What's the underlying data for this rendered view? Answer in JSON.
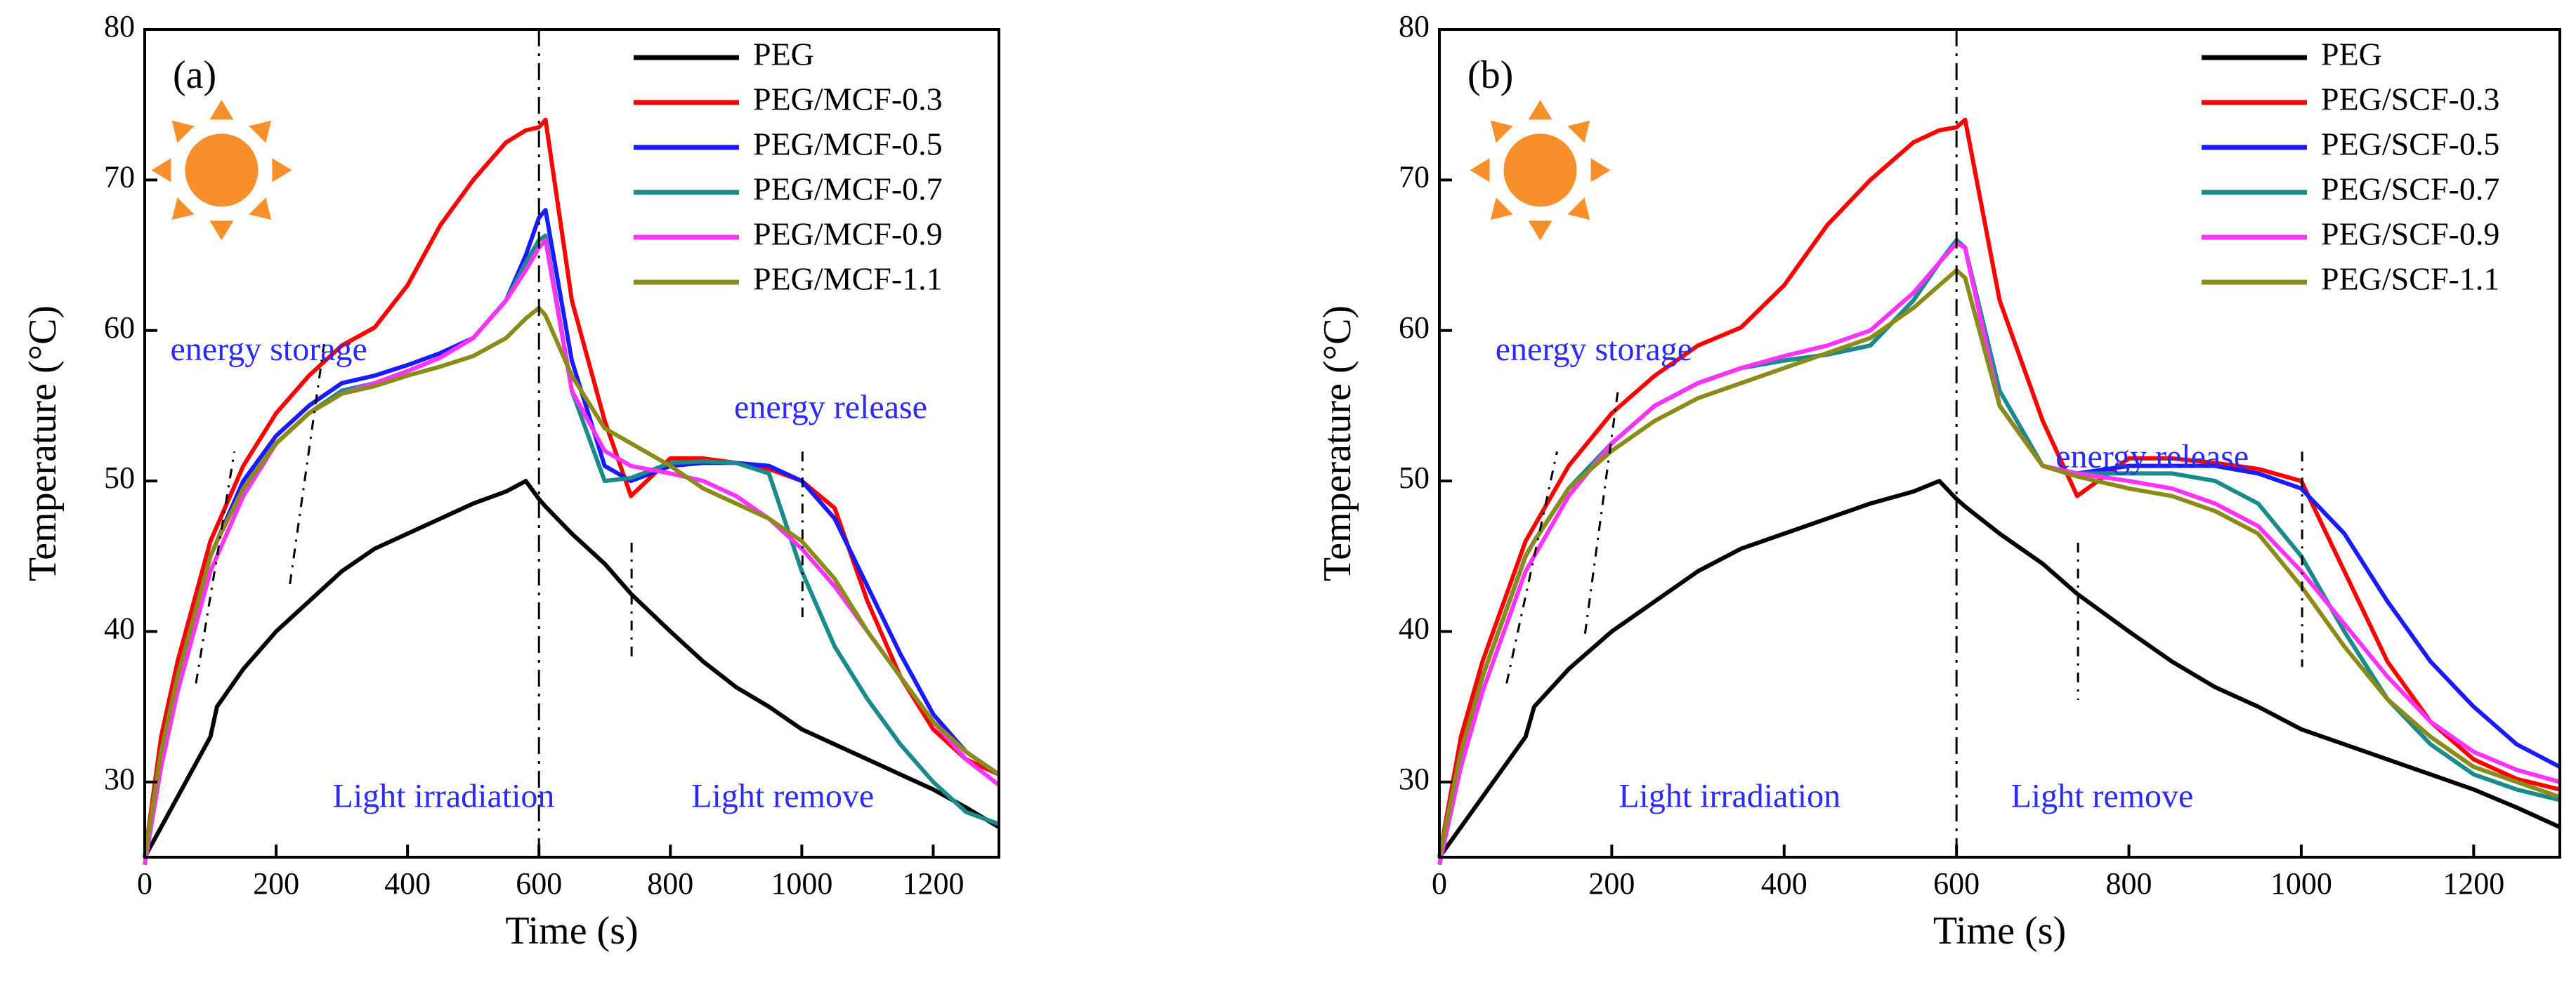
{
  "chart_data": [
    {
      "type": "line",
      "label": "(a)",
      "xlabel": "Time (s)",
      "ylabel": "Temperature (°C)",
      "annotations": [
        "energy storage",
        "energy release",
        "Light irradiation",
        "Light remove"
      ],
      "xlim": [
        0,
        1300
      ],
      "ylim": [
        25,
        80
      ],
      "xticks": [
        0,
        200,
        400,
        600,
        800,
        1000,
        1200
      ],
      "yticks": [
        30,
        40,
        50,
        60,
        70,
        80
      ],
      "legend": "upper right",
      "x": [
        0,
        25,
        50,
        100,
        110,
        150,
        200,
        250,
        300,
        350,
        400,
        450,
        500,
        550,
        580,
        600,
        610,
        650,
        700,
        740,
        800,
        850,
        900,
        950,
        1000,
        1050,
        1100,
        1150,
        1200,
        1250,
        1300
      ],
      "series": [
        {
          "name": "PEG",
          "color": "#000000",
          "values": [
            25,
            27,
            29,
            33,
            35,
            37.5,
            40,
            42,
            44,
            45.5,
            46.5,
            47.5,
            48.5,
            49.3,
            50,
            48.8,
            48.3,
            46.5,
            44.5,
            42.5,
            40,
            38,
            36.3,
            35,
            33.5,
            32.5,
            31.5,
            30.5,
            29.5,
            28.3,
            27
          ]
        },
        {
          "name": "PEG/MCF-0.3",
          "color": "#ff0000",
          "values": [
            25,
            33,
            38,
            46,
            47,
            51,
            54.5,
            57,
            59,
            60.2,
            63,
            67,
            70,
            72.5,
            73.3,
            73.5,
            74,
            62,
            54,
            49,
            51.5,
            51.5,
            51.2,
            50.8,
            50,
            48.2,
            42,
            37,
            33.5,
            31.5,
            30.5
          ]
        },
        {
          "name": "PEG/MCF-0.5",
          "color": "#1a1aff",
          "values": [
            25,
            32,
            37,
            45,
            46,
            50,
            53,
            55,
            56.5,
            57,
            57.7,
            58.5,
            59.5,
            62,
            65,
            67.5,
            68,
            58,
            51,
            50,
            51,
            51.2,
            51.2,
            51,
            50,
            47.5,
            43,
            38.5,
            34.5,
            32,
            30.5
          ]
        },
        {
          "name": "PEG/MCF-0.7",
          "color": "#1a8a8a",
          "values": [
            25,
            32,
            37,
            45,
            46,
            49.5,
            52.5,
            54.5,
            56,
            56.5,
            57.3,
            58.2,
            59.5,
            62,
            64.5,
            66,
            66.3,
            56,
            50,
            50.2,
            51.2,
            51.3,
            51.2,
            50.5,
            44,
            39,
            35.5,
            32.5,
            30,
            28,
            27.2
          ]
        },
        {
          "name": "PEG/MCF-0.9",
          "color": "#ff33ff",
          "values": [
            24.5,
            31,
            36,
            44,
            45,
            49,
            52.5,
            54.5,
            55.8,
            56.5,
            57.3,
            58.2,
            59.5,
            62,
            64,
            65.5,
            66,
            56,
            52,
            51,
            50.5,
            50,
            49,
            47.5,
            45.5,
            43,
            40,
            37,
            34,
            31.5,
            29.8
          ]
        },
        {
          "name": "PEG/MCF-1.1",
          "color": "#8b8b1a",
          "values": [
            25,
            32,
            37,
            45,
            46,
            49.5,
            52.5,
            54.5,
            55.8,
            56.3,
            57,
            57.6,
            58.3,
            59.5,
            60.8,
            61.5,
            61,
            57,
            53.5,
            52.5,
            51,
            49.5,
            48.5,
            47.5,
            46,
            43.5,
            40,
            37,
            34,
            32,
            30.5
          ]
        }
      ]
    },
    {
      "type": "line",
      "label": "(b)",
      "xlabel": "Time (s)",
      "ylabel": "Temperature (°C)",
      "annotations": [
        "energy storage",
        "energy release",
        "Light irradiation",
        "Light remove"
      ],
      "xlim": [
        0,
        1300
      ],
      "ylim": [
        25,
        80
      ],
      "xticks": [
        0,
        200,
        400,
        600,
        800,
        1000,
        1200
      ],
      "yticks": [
        30,
        40,
        50,
        60,
        70,
        80
      ],
      "legend": "upper right",
      "x": [
        0,
        25,
        50,
        100,
        110,
        150,
        200,
        250,
        300,
        350,
        400,
        450,
        500,
        550,
        580,
        600,
        610,
        650,
        700,
        740,
        800,
        850,
        900,
        950,
        1000,
        1050,
        1100,
        1150,
        1200,
        1250,
        1300
      ],
      "series": [
        {
          "name": "PEG",
          "color": "#000000",
          "values": [
            25,
            27,
            29,
            33,
            35,
            37.5,
            40,
            42,
            44,
            45.5,
            46.5,
            47.5,
            48.5,
            49.3,
            50,
            48.8,
            48.3,
            46.5,
            44.5,
            42.5,
            40,
            38,
            36.3,
            35,
            33.5,
            32.5,
            31.5,
            30.5,
            29.5,
            28.3,
            27
          ]
        },
        {
          "name": "PEG/SCF-0.3",
          "color": "#ff0000",
          "values": [
            25,
            33,
            38,
            46,
            47,
            51,
            54.5,
            57,
            59,
            60.2,
            63,
            67,
            70,
            72.5,
            73.3,
            73.5,
            74,
            62,
            54,
            49,
            51.5,
            51.5,
            51.2,
            50.8,
            50,
            44,
            38,
            34,
            31.5,
            30.2,
            29.5
          ]
        },
        {
          "name": "PEG/SCF-0.5",
          "color": "#1a1aff",
          "values": [
            25,
            32,
            37,
            45,
            46,
            49.5,
            52.5,
            55,
            56.5,
            57.5,
            58,
            58.4,
            59,
            62,
            64.5,
            66,
            65.5,
            55,
            51,
            50.5,
            51,
            51,
            51,
            50.5,
            49.5,
            46.5,
            42,
            38,
            35,
            32.5,
            31
          ]
        },
        {
          "name": "PEG/SCF-0.7",
          "color": "#1a8a8a",
          "values": [
            25,
            32,
            37,
            45,
            46,
            49.5,
            52.5,
            55,
            56.5,
            57.5,
            58,
            58.4,
            59,
            62,
            64.5,
            66,
            65.5,
            56,
            51,
            50.5,
            50.5,
            50.5,
            50,
            48.5,
            45,
            40,
            35.5,
            32.5,
            30.5,
            29.5,
            28.8
          ]
        },
        {
          "name": "PEG/SCF-0.9",
          "color": "#ff33ff",
          "values": [
            24.5,
            31,
            36,
            44,
            45,
            49,
            52.5,
            55,
            56.5,
            57.5,
            58.3,
            59,
            60,
            62.5,
            64.5,
            65.8,
            65.5,
            55,
            51,
            50.5,
            50,
            49.5,
            48.5,
            47,
            44,
            40.5,
            37,
            34,
            32,
            30.8,
            30
          ]
        },
        {
          "name": "PEG/SCF-1.1",
          "color": "#8b8b1a",
          "values": [
            25,
            32,
            37,
            45,
            46,
            49.5,
            52,
            54,
            55.5,
            56.5,
            57.5,
            58.5,
            59.5,
            61.5,
            63,
            64,
            63.5,
            55,
            51,
            50.3,
            49.5,
            49,
            48,
            46.5,
            43,
            39,
            35.5,
            33,
            31,
            30,
            29
          ]
        }
      ]
    }
  ]
}
